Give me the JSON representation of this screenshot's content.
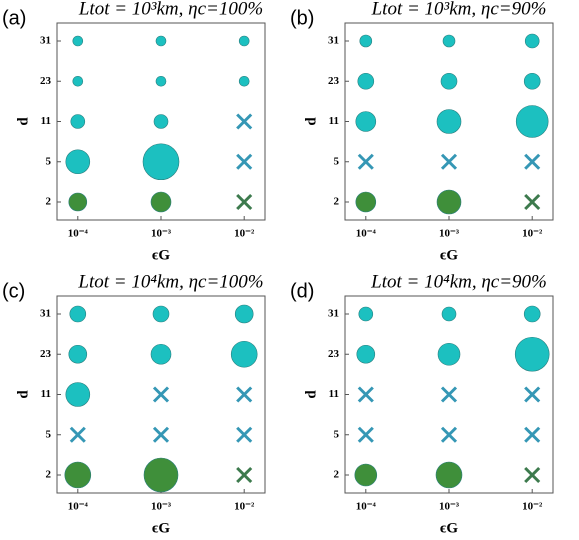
{
  "chart_data": [
    {
      "type": "bubble",
      "label": "(a)",
      "title": "Ltot = 10³km, ηc=100%",
      "x_label": "ϵG",
      "y_label": "d",
      "categories": [
        "10⁻⁴",
        "10⁻³",
        "10⁻²"
      ],
      "rows": [
        "31",
        "23",
        "11",
        "5",
        "2"
      ],
      "sizes": [
        [
          5,
          5,
          5
        ],
        [
          5,
          5,
          5
        ],
        [
          7,
          7,
          null
        ],
        [
          12,
          18,
          null
        ],
        [
          9,
          10,
          null
        ]
      ],
      "row_colors": [
        "#1cc0c0",
        "#1cc0c0",
        "#1cc0c0",
        "#1cc0c0",
        "#3f8f3a"
      ],
      "cross_colors": [
        "#3597b5",
        "#3597b5",
        "#3597b5",
        "#3597b5",
        "#3d7a4d"
      ]
    },
    {
      "type": "bubble",
      "label": "(b)",
      "title": "Ltot = 10³km, ηc=90%",
      "x_label": "ϵG",
      "y_label": "d",
      "categories": [
        "10⁻⁴",
        "10⁻³",
        "10⁻²"
      ],
      "rows": [
        "31",
        "23",
        "11",
        "5",
        "2"
      ],
      "sizes": [
        [
          6,
          6,
          7
        ],
        [
          8,
          8,
          8
        ],
        [
          10,
          12,
          16
        ],
        [
          null,
          null,
          null
        ],
        [
          10,
          12,
          null
        ]
      ],
      "row_colors": [
        "#1cc0c0",
        "#1cc0c0",
        "#1cc0c0",
        "#1cc0c0",
        "#3f8f3a"
      ],
      "cross_colors": [
        "#3597b5",
        "#3597b5",
        "#3597b5",
        "#3597b5",
        "#3d7a4d"
      ]
    },
    {
      "type": "bubble",
      "label": "(c)",
      "title": "Ltot = 10⁴km, ηc=100%",
      "x_label": "ϵG",
      "y_label": "d",
      "categories": [
        "10⁻⁴",
        "10⁻³",
        "10⁻²"
      ],
      "rows": [
        "31",
        "23",
        "11",
        "5",
        "2"
      ],
      "sizes": [
        [
          8,
          8,
          9
        ],
        [
          9,
          10,
          13
        ],
        [
          12,
          null,
          null
        ],
        [
          null,
          null,
          null
        ],
        [
          13,
          17,
          null
        ]
      ],
      "row_colors": [
        "#1cc0c0",
        "#1cc0c0",
        "#1cc0c0",
        "#1cc0c0",
        "#3f8f3a"
      ],
      "cross_colors": [
        "#3597b5",
        "#3597b5",
        "#3597b5",
        "#3597b5",
        "#3d7a4d"
      ]
    },
    {
      "type": "bubble",
      "label": "(d)",
      "title": "Ltot = 10⁴km, ηc=90%",
      "x_label": "ϵG",
      "y_label": "d",
      "categories": [
        "10⁻⁴",
        "10⁻³",
        "10⁻²"
      ],
      "rows": [
        "31",
        "23",
        "11",
        "5",
        "2"
      ],
      "sizes": [
        [
          7,
          7,
          8
        ],
        [
          9,
          11,
          17
        ],
        [
          null,
          null,
          null
        ],
        [
          null,
          null,
          null
        ],
        [
          11,
          13,
          null
        ]
      ],
      "row_colors": [
        "#1cc0c0",
        "#1cc0c0",
        "#1cc0c0",
        "#1cc0c0",
        "#3f8f3a"
      ],
      "cross_colors": [
        "#3597b5",
        "#3597b5",
        "#3597b5",
        "#3597b5",
        "#3d7a4d"
      ]
    }
  ]
}
